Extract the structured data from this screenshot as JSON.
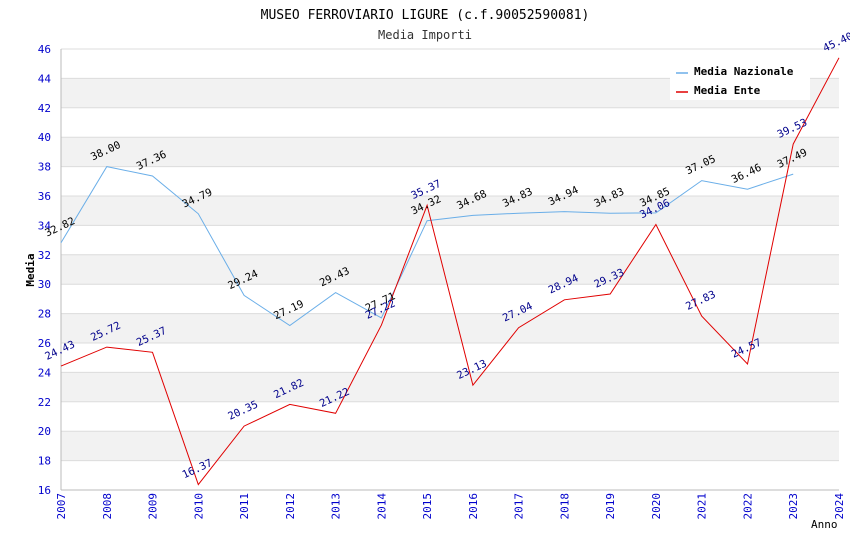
{
  "chart_data": {
    "type": "line",
    "title": "MUSEO FERROVIARIO LIGURE (c.f.90052590081)",
    "subtitle": "Media Importi",
    "xlabel": "Anno",
    "ylabel": "Media",
    "ylim": [
      16,
      46
    ],
    "yticks": [
      16,
      18,
      20,
      22,
      24,
      26,
      28,
      30,
      32,
      34,
      36,
      38,
      40,
      42,
      44,
      46
    ],
    "x": [
      "2007",
      "2008",
      "2009",
      "2010",
      "2011",
      "2012",
      "2013",
      "2014",
      "2015",
      "2016",
      "2017",
      "2018",
      "2019",
      "2020",
      "2021",
      "2022",
      "2023",
      "2024"
    ],
    "legend_position": "top-right",
    "grid": "horizontal alternating bands",
    "tick_color": "#0000cc",
    "series": [
      {
        "name": "Media Nazionale",
        "color": "#6aaee8",
        "label_color": "#000000",
        "values": [
          32.82,
          38.0,
          37.36,
          34.79,
          29.24,
          27.19,
          29.43,
          27.71,
          34.32,
          34.68,
          34.83,
          34.94,
          34.83,
          34.85,
          37.05,
          36.46,
          37.49,
          null
        ],
        "labels": [
          "32.82",
          "38.00",
          "37.36",
          "34.79",
          "29.24",
          "27.19",
          "29.43",
          "27.71",
          "34.32",
          "34.68",
          "34.83",
          "34.94",
          "34.83",
          "34.85",
          "37.05",
          "36.46",
          "37.49",
          ""
        ]
      },
      {
        "name": "Media Ente",
        "color": "#e00000",
        "label_color": "#00008b",
        "values": [
          24.43,
          25.72,
          25.37,
          16.37,
          20.35,
          21.82,
          21.22,
          27.22,
          35.37,
          23.13,
          27.04,
          28.94,
          29.33,
          34.06,
          27.83,
          24.57,
          39.53,
          45.4
        ],
        "labels": [
          "24.43",
          "25.72",
          "25.37",
          "16.37",
          "20.35",
          "21.82",
          "21.22",
          "27.22",
          "35.37",
          "23.13",
          "27.04",
          "28.94",
          "29.33",
          "34.06",
          "27.83",
          "24.57",
          "39.53",
          "45.40"
        ]
      }
    ]
  }
}
